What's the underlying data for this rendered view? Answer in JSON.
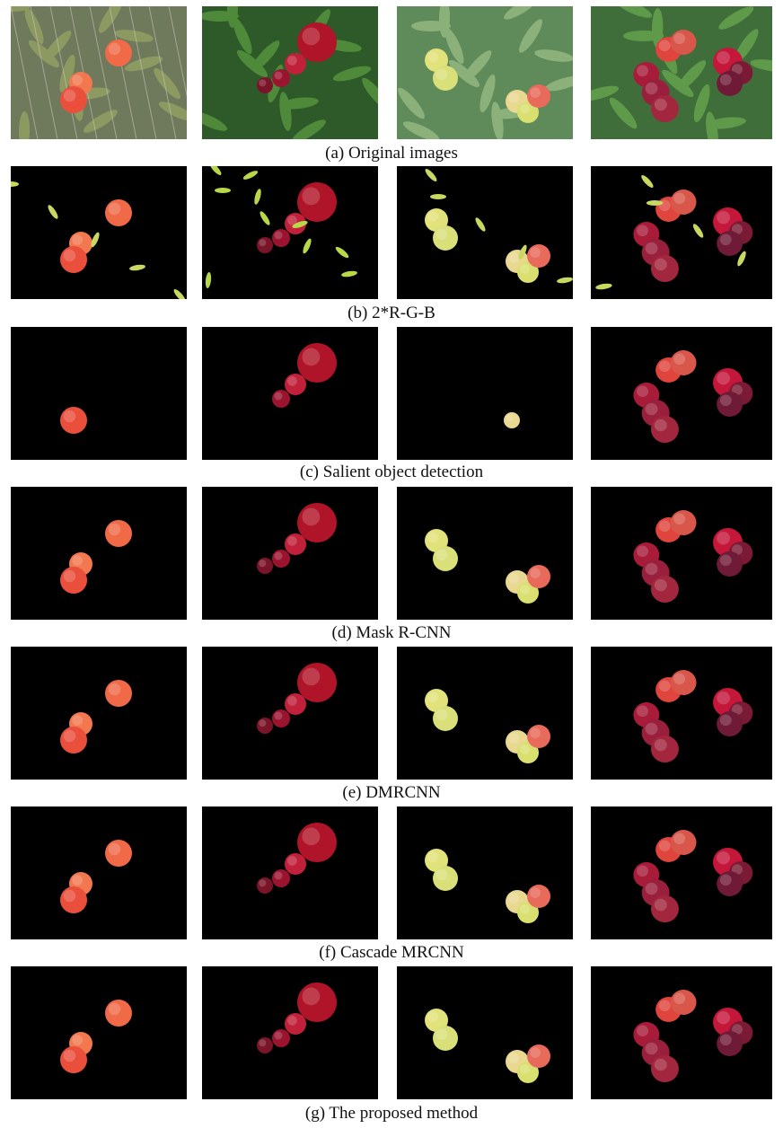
{
  "figure": {
    "rows": [
      {
        "id": "original",
        "caption": "(a) Original images"
      },
      {
        "id": "rgb",
        "caption": "(b) 2*R-G-B"
      },
      {
        "id": "salient",
        "caption": "(c) Salient object detection"
      },
      {
        "id": "maskrcnn",
        "caption": "(d) Mask R-CNN"
      },
      {
        "id": "dmrcnn",
        "caption": "(e) DMRCNN"
      },
      {
        "id": "cascade",
        "caption": "(f) Cascade MRCNN"
      },
      {
        "id": "proposed",
        "caption": "(g) The proposed method"
      }
    ],
    "columns": 4
  }
}
